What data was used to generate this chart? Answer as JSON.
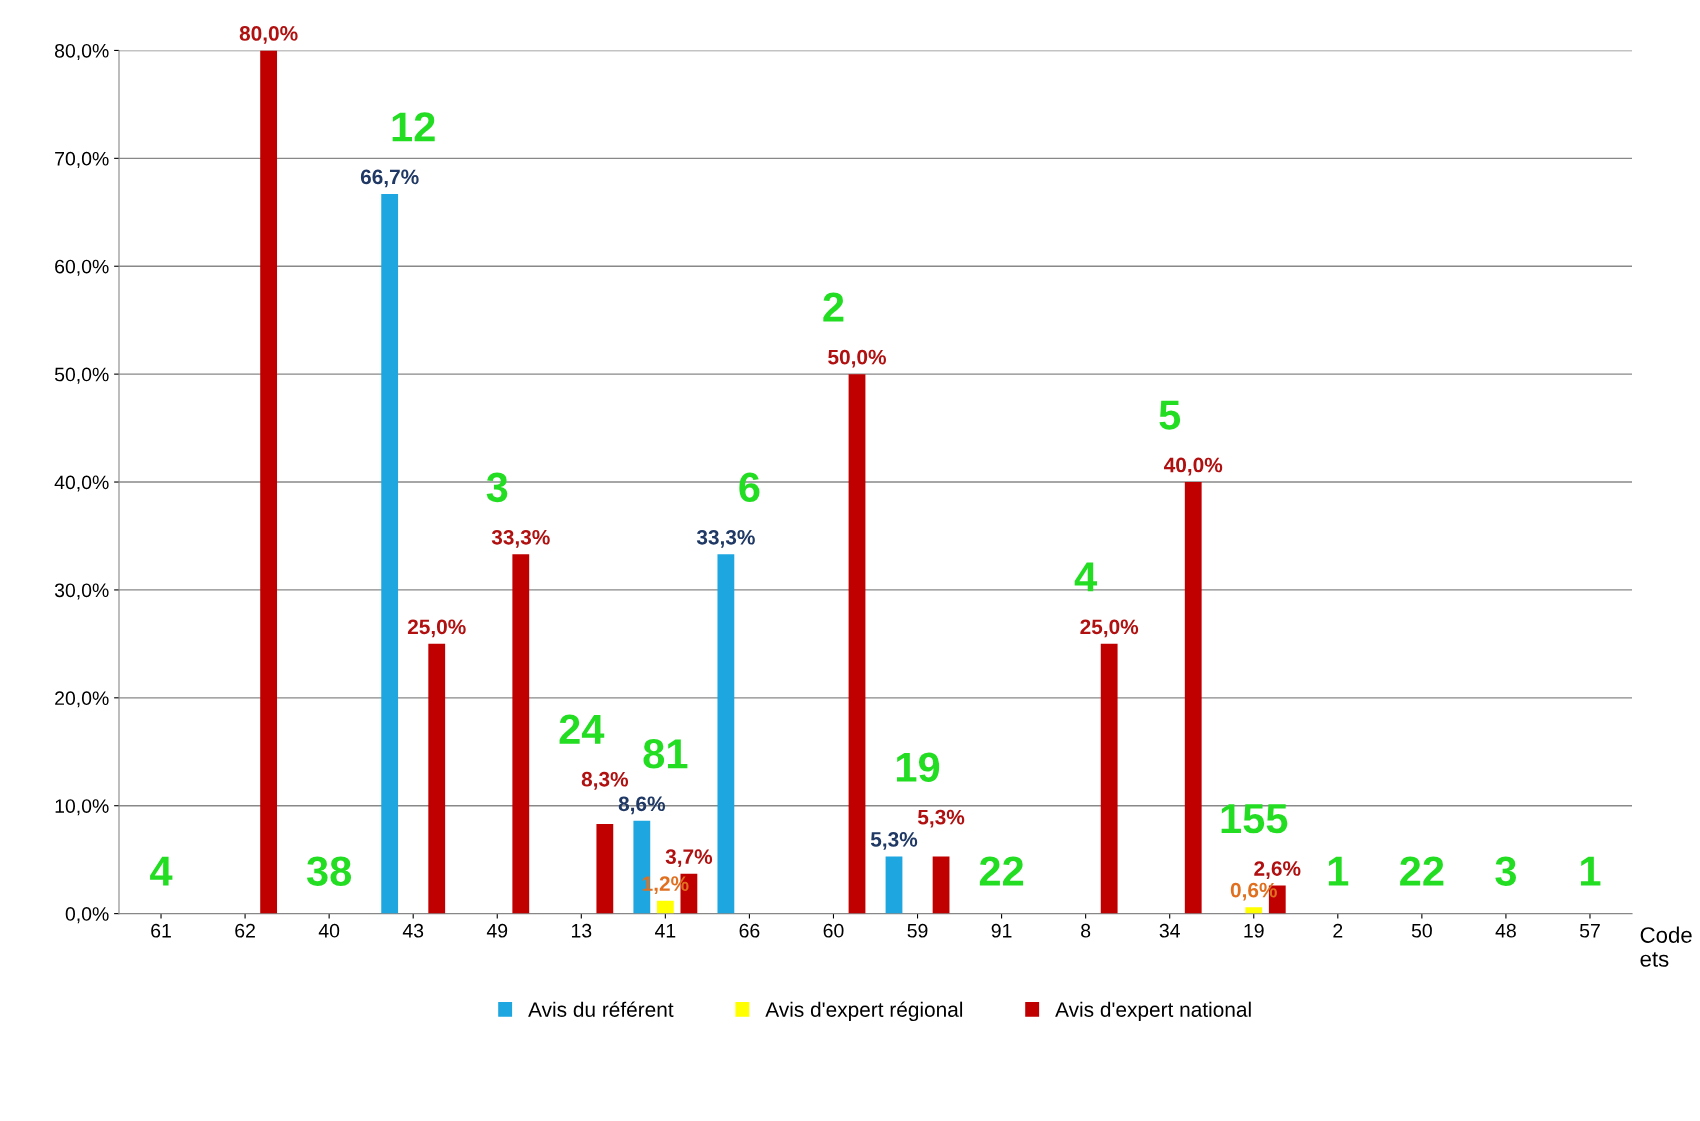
{
  "chart_data": {
    "type": "bar",
    "xlabel": "Code\nets",
    "categories": [
      "61",
      "62",
      "40",
      "43",
      "49",
      "13",
      "41",
      "66",
      "60",
      "59",
      "91",
      "8",
      "34",
      "19",
      "2",
      "50",
      "48",
      "57"
    ],
    "series": [
      {
        "name": "Avis du référent",
        "color": "#1ea6e0",
        "values": [
          0,
          0,
          0,
          66.7,
          0,
          0,
          8.6,
          33.3,
          0,
          5.3,
          0,
          0,
          0,
          0,
          0,
          0,
          0,
          0
        ],
        "value_labels": [
          null,
          null,
          null,
          "66,7%",
          null,
          null,
          "8,6%",
          "33,3%",
          null,
          "5,3%",
          null,
          null,
          null,
          null,
          null,
          null,
          null,
          null
        ]
      },
      {
        "name": "Avis d'expert régional",
        "color": "#ffff00",
        "values": [
          0,
          0,
          0,
          0,
          0,
          0,
          1.2,
          0,
          0,
          0,
          0,
          0,
          0,
          0.6,
          0,
          0,
          0,
          0
        ],
        "value_labels": [
          null,
          null,
          null,
          null,
          null,
          null,
          "1,2%",
          null,
          null,
          null,
          null,
          null,
          null,
          "0,6%",
          null,
          null,
          null,
          null
        ]
      },
      {
        "name": "Avis d'expert national",
        "color": "#c00000",
        "values": [
          0,
          80,
          0,
          25,
          33.3,
          8.3,
          3.7,
          0,
          50,
          5.3,
          0,
          25,
          40,
          2.6,
          0,
          0,
          0,
          0
        ],
        "value_labels": [
          null,
          "80,0%",
          null,
          "25,0%",
          "33,3%",
          "8,3%",
          "3,7%",
          null,
          "50,0%",
          "5,3%",
          null,
          "25,0%",
          "40,0%",
          "2,6%",
          null,
          null,
          null,
          null
        ]
      }
    ],
    "ylim": [
      0,
      80
    ],
    "yticks": [
      {
        "value": 0,
        "label": "0,0%"
      },
      {
        "value": 10,
        "label": "10,0%"
      },
      {
        "value": 20,
        "label": "20,0%"
      },
      {
        "value": 30,
        "label": "30,0%"
      },
      {
        "value": 40,
        "label": "40,0%"
      },
      {
        "value": 50,
        "label": "50,0%"
      },
      {
        "value": 60,
        "label": "60,0%"
      },
      {
        "value": 70,
        "label": "70,0%"
      },
      {
        "value": 80,
        "label": "80,0%"
      }
    ],
    "grid": "y",
    "legend": "bottom",
    "annotations": [
      "4",
      "38",
      "12",
      "3",
      "24",
      "81",
      "6",
      "2",
      "19",
      "22",
      "4",
      "5",
      "155",
      "1",
      "22",
      "3",
      "1"
    ]
  }
}
